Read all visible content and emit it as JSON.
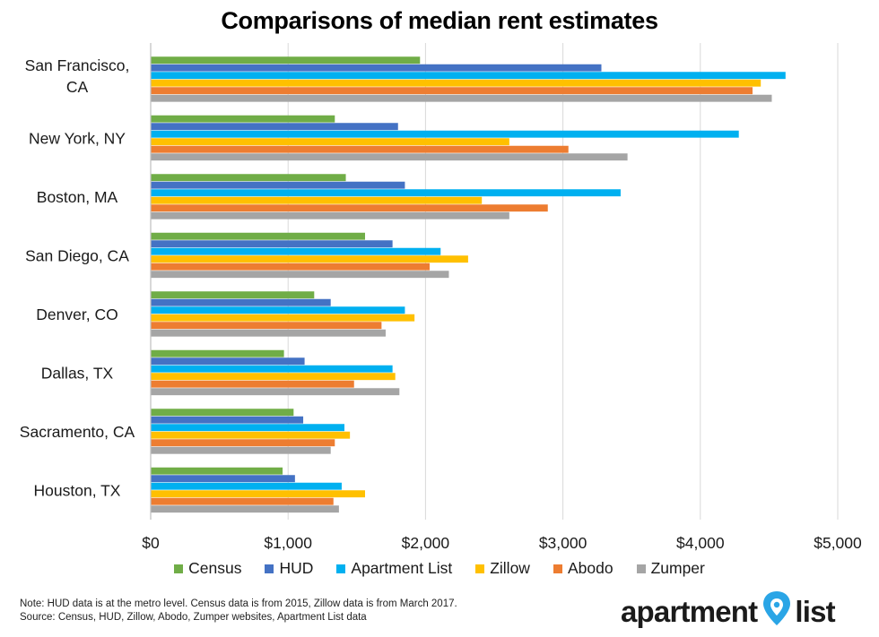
{
  "chart_data": {
    "type": "bar",
    "orientation": "horizontal",
    "title": "Comparisons of median rent estimates",
    "categories": [
      "San Francisco, CA",
      "New York, NY",
      "Boston, MA",
      "San Diego, CA",
      "Denver, CO",
      "Dallas, TX",
      "Sacramento, CA",
      "Houston, TX"
    ],
    "series": [
      {
        "name": "Census",
        "color": "#70ad47",
        "values": [
          1960,
          1340,
          1420,
          1560,
          1190,
          970,
          1040,
          960
        ]
      },
      {
        "name": "HUD",
        "color": "#4472c4",
        "values": [
          3280,
          1800,
          1850,
          1760,
          1310,
          1120,
          1110,
          1050
        ]
      },
      {
        "name": "Apartment List",
        "color": "#00b0f0",
        "values": [
          4620,
          4280,
          3420,
          2110,
          1850,
          1760,
          1410,
          1390
        ]
      },
      {
        "name": "Zillow",
        "color": "#ffc000",
        "values": [
          4440,
          2610,
          2410,
          2310,
          1920,
          1780,
          1450,
          1560
        ]
      },
      {
        "name": "Abodo",
        "color": "#ed7d31",
        "values": [
          4380,
          3040,
          2890,
          2030,
          1680,
          1480,
          1340,
          1330
        ]
      },
      {
        "name": "Zumper",
        "color": "#a5a5a5",
        "values": [
          4520,
          3470,
          2610,
          2170,
          1710,
          1810,
          1310,
          1370
        ]
      }
    ],
    "xlim": [
      0,
      5000
    ],
    "ticks": [
      0,
      1000,
      2000,
      3000,
      4000,
      5000
    ],
    "tick_labels": [
      "$0",
      "$1,000",
      "$2,000",
      "$3,000",
      "$4,000",
      "$5,000"
    ],
    "xlabel": "",
    "ylabel": "",
    "grid": "vertical",
    "legend": "bottom"
  },
  "footnote": {
    "line1": "Note: HUD data is at the metro level. Census data is from 2015, Zillow data is from March 2017.",
    "line2": "Source: Census, HUD, Zillow, Abodo, Zumper websites, Apartment List data"
  },
  "logo": {
    "left": "apartment",
    "right": "list"
  }
}
